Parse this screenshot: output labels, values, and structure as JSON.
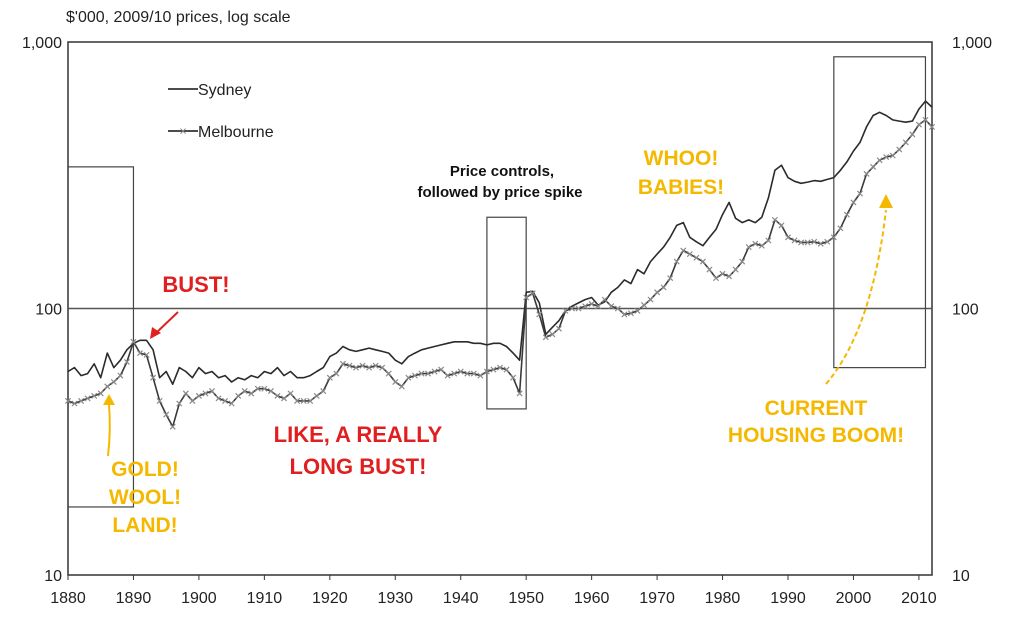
{
  "chart_data": {
    "type": "line",
    "unit_label": "$'000, 2009/10 prices, log scale",
    "y_scale": "log",
    "ylim": [
      10,
      1000
    ],
    "xlim": [
      1880,
      2012
    ],
    "y_ticks": [
      "1,000",
      "100",
      "10"
    ],
    "y_tick_values": [
      1000,
      100,
      10
    ],
    "x_ticks": [
      "1880",
      "1890",
      "1900",
      "1910",
      "1920",
      "1930",
      "1940",
      "1950",
      "1960",
      "1970",
      "1980",
      "1990",
      "2000",
      "2010"
    ],
    "x_tick_values": [
      1880,
      1890,
      1900,
      1910,
      1920,
      1930,
      1940,
      1950,
      1960,
      1970,
      1980,
      1990,
      2000,
      2010
    ],
    "reference_line": 100,
    "legend_placement": "top-left",
    "grid": false,
    "colors": {
      "sydney": "#2b2b2b",
      "melbourne": "#3a3a3a",
      "marker": "#8a8a8a",
      "red": "#e02020",
      "gold": "#f5b800"
    },
    "series": [
      {
        "name": "Sydney",
        "marker": "none",
        "points": [
          [
            1880,
            58
          ],
          [
            1881,
            60
          ],
          [
            1882,
            56
          ],
          [
            1883,
            57
          ],
          [
            1884,
            62
          ],
          [
            1885,
            55
          ],
          [
            1886,
            68
          ],
          [
            1887,
            60
          ],
          [
            1888,
            64
          ],
          [
            1889,
            70
          ],
          [
            1890,
            74
          ],
          [
            1891,
            76
          ],
          [
            1892,
            76
          ],
          [
            1893,
            70
          ],
          [
            1894,
            55
          ],
          [
            1895,
            58
          ],
          [
            1896,
            52
          ],
          [
            1897,
            60
          ],
          [
            1898,
            58
          ],
          [
            1899,
            55
          ],
          [
            1900,
            60
          ],
          [
            1901,
            57
          ],
          [
            1902,
            58
          ],
          [
            1903,
            55
          ],
          [
            1904,
            56
          ],
          [
            1905,
            53
          ],
          [
            1906,
            55
          ],
          [
            1907,
            54
          ],
          [
            1908,
            56
          ],
          [
            1909,
            55
          ],
          [
            1910,
            58
          ],
          [
            1911,
            57
          ],
          [
            1912,
            60
          ],
          [
            1913,
            56
          ],
          [
            1914,
            58
          ],
          [
            1915,
            55
          ],
          [
            1916,
            55
          ],
          [
            1917,
            56
          ],
          [
            1918,
            58
          ],
          [
            1919,
            60
          ],
          [
            1920,
            66
          ],
          [
            1921,
            68
          ],
          [
            1922,
            72
          ],
          [
            1923,
            70
          ],
          [
            1924,
            69
          ],
          [
            1925,
            70
          ],
          [
            1926,
            71
          ],
          [
            1927,
            70
          ],
          [
            1928,
            69
          ],
          [
            1929,
            68
          ],
          [
            1930,
            64
          ],
          [
            1931,
            62
          ],
          [
            1932,
            66
          ],
          [
            1933,
            68
          ],
          [
            1934,
            70
          ],
          [
            1935,
            71
          ],
          [
            1936,
            72
          ],
          [
            1937,
            73
          ],
          [
            1938,
            74
          ],
          [
            1939,
            75
          ],
          [
            1940,
            75
          ],
          [
            1941,
            75
          ],
          [
            1942,
            74
          ],
          [
            1943,
            74
          ],
          [
            1944,
            73
          ],
          [
            1945,
            74
          ],
          [
            1946,
            74
          ],
          [
            1947,
            72
          ],
          [
            1948,
            68
          ],
          [
            1949,
            64
          ],
          [
            1950,
            115
          ],
          [
            1951,
            116
          ],
          [
            1952,
            105
          ],
          [
            1953,
            80
          ],
          [
            1954,
            85
          ],
          [
            1955,
            90
          ],
          [
            1956,
            98
          ],
          [
            1957,
            102
          ],
          [
            1958,
            105
          ],
          [
            1959,
            108
          ],
          [
            1960,
            110
          ],
          [
            1961,
            103
          ],
          [
            1962,
            106
          ],
          [
            1963,
            115
          ],
          [
            1964,
            120
          ],
          [
            1965,
            128
          ],
          [
            1966,
            124
          ],
          [
            1967,
            140
          ],
          [
            1968,
            135
          ],
          [
            1969,
            150
          ],
          [
            1970,
            160
          ],
          [
            1971,
            170
          ],
          [
            1972,
            185
          ],
          [
            1973,
            205
          ],
          [
            1974,
            210
          ],
          [
            1975,
            185
          ],
          [
            1976,
            178
          ],
          [
            1977,
            172
          ],
          [
            1978,
            185
          ],
          [
            1979,
            198
          ],
          [
            1980,
            225
          ],
          [
            1981,
            250
          ],
          [
            1982,
            218
          ],
          [
            1983,
            210
          ],
          [
            1984,
            215
          ],
          [
            1985,
            210
          ],
          [
            1986,
            220
          ],
          [
            1987,
            260
          ],
          [
            1988,
            330
          ],
          [
            1989,
            345
          ],
          [
            1990,
            310
          ],
          [
            1991,
            300
          ],
          [
            1992,
            295
          ],
          [
            1993,
            298
          ],
          [
            1994,
            302
          ],
          [
            1995,
            300
          ],
          [
            1996,
            305
          ],
          [
            1997,
            310
          ],
          [
            1998,
            330
          ],
          [
            1999,
            355
          ],
          [
            2000,
            390
          ],
          [
            2001,
            420
          ],
          [
            2002,
            480
          ],
          [
            2003,
            530
          ],
          [
            2004,
            545
          ],
          [
            2005,
            530
          ],
          [
            2006,
            510
          ],
          [
            2007,
            505
          ],
          [
            2008,
            500
          ],
          [
            2009,
            505
          ],
          [
            2010,
            560
          ],
          [
            2011,
            600
          ],
          [
            2012,
            570
          ]
        ]
      },
      {
        "name": "Melbourne",
        "marker": "x",
        "points": [
          [
            1880,
            45
          ],
          [
            1881,
            44
          ],
          [
            1882,
            45
          ],
          [
            1883,
            46
          ],
          [
            1884,
            47
          ],
          [
            1885,
            48
          ],
          [
            1886,
            51
          ],
          [
            1887,
            53
          ],
          [
            1888,
            56
          ],
          [
            1889,
            63
          ],
          [
            1890,
            75
          ],
          [
            1891,
            68
          ],
          [
            1892,
            67
          ],
          [
            1893,
            55
          ],
          [
            1894,
            45
          ],
          [
            1895,
            40
          ],
          [
            1896,
            36
          ],
          [
            1897,
            44
          ],
          [
            1898,
            48
          ],
          [
            1899,
            45
          ],
          [
            1900,
            47
          ],
          [
            1901,
            48
          ],
          [
            1902,
            49
          ],
          [
            1903,
            46
          ],
          [
            1904,
            45
          ],
          [
            1905,
            44
          ],
          [
            1906,
            47
          ],
          [
            1907,
            49
          ],
          [
            1908,
            48
          ],
          [
            1909,
            50
          ],
          [
            1910,
            50
          ],
          [
            1911,
            49
          ],
          [
            1912,
            47
          ],
          [
            1913,
            46
          ],
          [
            1914,
            48
          ],
          [
            1915,
            45
          ],
          [
            1916,
            45
          ],
          [
            1917,
            45
          ],
          [
            1918,
            47
          ],
          [
            1919,
            49
          ],
          [
            1920,
            55
          ],
          [
            1921,
            57
          ],
          [
            1922,
            62
          ],
          [
            1923,
            61
          ],
          [
            1924,
            60
          ],
          [
            1925,
            61
          ],
          [
            1926,
            60
          ],
          [
            1927,
            61
          ],
          [
            1928,
            60
          ],
          [
            1929,
            57
          ],
          [
            1930,
            53
          ],
          [
            1931,
            51
          ],
          [
            1932,
            55
          ],
          [
            1933,
            56
          ],
          [
            1934,
            57
          ],
          [
            1935,
            57
          ],
          [
            1936,
            58
          ],
          [
            1937,
            59
          ],
          [
            1938,
            56
          ],
          [
            1939,
            57
          ],
          [
            1940,
            58
          ],
          [
            1941,
            57
          ],
          [
            1942,
            57
          ],
          [
            1943,
            56
          ],
          [
            1944,
            58
          ],
          [
            1945,
            59
          ],
          [
            1946,
            60
          ],
          [
            1947,
            59
          ],
          [
            1948,
            55
          ],
          [
            1949,
            48
          ],
          [
            1950,
            110
          ],
          [
            1951,
            114
          ],
          [
            1952,
            95
          ],
          [
            1953,
            78
          ],
          [
            1954,
            80
          ],
          [
            1955,
            84
          ],
          [
            1956,
            98
          ],
          [
            1957,
            100
          ],
          [
            1958,
            100
          ],
          [
            1959,
            102
          ],
          [
            1960,
            104
          ],
          [
            1961,
            102
          ],
          [
            1962,
            108
          ],
          [
            1963,
            102
          ],
          [
            1964,
            100
          ],
          [
            1965,
            95
          ],
          [
            1966,
            96
          ],
          [
            1967,
            98
          ],
          [
            1968,
            103
          ],
          [
            1969,
            108
          ],
          [
            1970,
            115
          ],
          [
            1971,
            120
          ],
          [
            1972,
            130
          ],
          [
            1973,
            150
          ],
          [
            1974,
            165
          ],
          [
            1975,
            160
          ],
          [
            1976,
            155
          ],
          [
            1977,
            150
          ],
          [
            1978,
            140
          ],
          [
            1979,
            130
          ],
          [
            1980,
            135
          ],
          [
            1981,
            132
          ],
          [
            1982,
            140
          ],
          [
            1983,
            150
          ],
          [
            1984,
            170
          ],
          [
            1985,
            175
          ],
          [
            1986,
            172
          ],
          [
            1987,
            180
          ],
          [
            1988,
            215
          ],
          [
            1989,
            205
          ],
          [
            1990,
            185
          ],
          [
            1991,
            180
          ],
          [
            1992,
            177
          ],
          [
            1993,
            177
          ],
          [
            1994,
            178
          ],
          [
            1995,
            175
          ],
          [
            1996,
            178
          ],
          [
            1997,
            185
          ],
          [
            1998,
            200
          ],
          [
            1999,
            225
          ],
          [
            2000,
            250
          ],
          [
            2001,
            270
          ],
          [
            2002,
            320
          ],
          [
            2003,
            340
          ],
          [
            2004,
            360
          ],
          [
            2005,
            370
          ],
          [
            2006,
            375
          ],
          [
            2007,
            395
          ],
          [
            2008,
            420
          ],
          [
            2009,
            450
          ],
          [
            2010,
            490
          ],
          [
            2011,
            510
          ],
          [
            2012,
            480
          ]
        ]
      }
    ],
    "annotation_boxes": [
      {
        "x0": 1880,
        "x1": 1890,
        "y_low": 18,
        "y_high": 340
      },
      {
        "x0": 1944,
        "x1": 1950,
        "y_low": 42,
        "y_high": 220
      },
      {
        "x0": 1997,
        "x1": 2011,
        "y_low": 60,
        "y_high": 880
      }
    ],
    "annotations": {
      "price_controls": [
        "Price controls,",
        "followed by price spike"
      ],
      "bust": [
        "BUST!"
      ],
      "long_bust": [
        "LIKE, A REALLY",
        "LONG BUST!"
      ],
      "gold": [
        "GOLD!",
        "WOOL!",
        "LAND!"
      ],
      "babies": [
        "WHOO!",
        "BABIES!"
      ],
      "boom": [
        "CURRENT",
        "HOUSING BOOM!"
      ]
    }
  }
}
